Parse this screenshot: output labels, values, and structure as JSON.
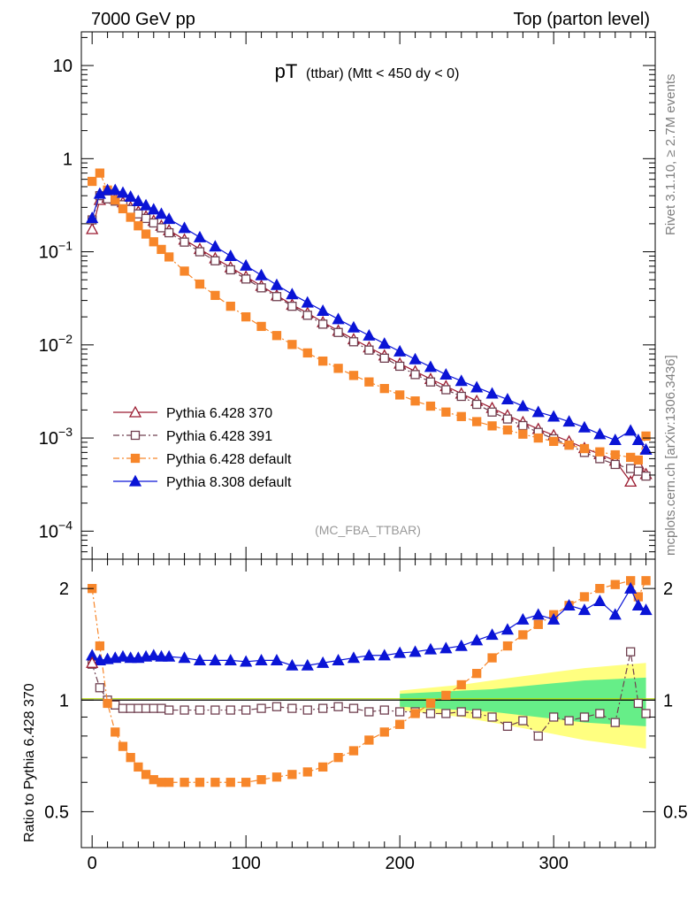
{
  "header": {
    "left": "7000 GeV pp",
    "right": "Top (parton level)"
  },
  "side_labels": {
    "rivet": "Rivet 3.1.10, ≥ 2.7M events",
    "mcplots": "mcplots.cern.ch [arXiv:1306.3436]"
  },
  "chart_data": [
    {
      "type": "line",
      "panel": "main",
      "title_main": "pT",
      "title_sub": "(ttbar) (Mtt < 450 dy < 0)",
      "analysis_label": "(MC_FBA_TTBAR)",
      "yscale": "log",
      "xlim": [
        -7,
        366
      ],
      "ylim": [
        5e-05,
        23
      ],
      "ytick_labels": [
        {
          "value": 0.0001,
          "base": "10",
          "exp": "−4"
        },
        {
          "value": 0.001,
          "base": "10",
          "exp": "−3"
        },
        {
          "value": 0.01,
          "base": "10",
          "exp": "−2"
        },
        {
          "value": 0.1,
          "base": "10",
          "exp": "−1"
        },
        {
          "value": 1,
          "base": "1",
          "exp": ""
        },
        {
          "value": 10,
          "base": "10",
          "exp": ""
        }
      ],
      "legend_position": "lower-left",
      "x": [
        0,
        5,
        10,
        15,
        20,
        25,
        30,
        35,
        40,
        45,
        50,
        60,
        70,
        80,
        90,
        100,
        110,
        120,
        130,
        140,
        150,
        160,
        170,
        180,
        190,
        200,
        210,
        220,
        230,
        240,
        250,
        260,
        270,
        280,
        290,
        300,
        310,
        320,
        330,
        340,
        350,
        355,
        360
      ],
      "series": [
        {
          "name": "Pythia 6.428 370",
          "color": "#9b1b30",
          "marker": "triangle-open",
          "dash": "solid",
          "values": [
            0.175,
            0.36,
            0.38,
            0.37,
            0.34,
            0.3,
            0.27,
            0.24,
            0.215,
            0.19,
            0.17,
            0.135,
            0.107,
            0.085,
            0.068,
            0.054,
            0.043,
            0.034,
            0.027,
            0.022,
            0.0175,
            0.0142,
            0.0115,
            0.0094,
            0.0077,
            0.0063,
            0.0052,
            0.0043,
            0.0036,
            0.003,
            0.0025,
            0.0021,
            0.00175,
            0.00148,
            0.00125,
            0.00107,
            0.00092,
            0.00078,
            0.00067,
            0.00057,
            0.00034,
            0.00052,
            0.00041
          ]
        },
        {
          "name": "Pythia 6.428 391",
          "color": "#704050",
          "marker": "square-open",
          "dash": "dashdot",
          "values": [
            0.22,
            0.4,
            0.37,
            0.35,
            0.32,
            0.285,
            0.255,
            0.228,
            0.204,
            0.181,
            0.16,
            0.127,
            0.1,
            0.08,
            0.064,
            0.051,
            0.041,
            0.033,
            0.026,
            0.0208,
            0.0167,
            0.0136,
            0.0108,
            0.0088,
            0.0072,
            0.0059,
            0.0048,
            0.004,
            0.0033,
            0.0028,
            0.0023,
            0.0019,
            0.0016,
            0.00136,
            0.00115,
            0.00098,
            0.00084,
            0.0007,
            0.0006,
            0.00052,
            0.00047,
            0.00044,
            0.00039
          ]
        },
        {
          "name": "Pythia 6.428 default",
          "color": "#f7862a",
          "marker": "square-filled",
          "dash": "dashdot",
          "values": [
            0.57,
            0.7,
            0.46,
            0.36,
            0.29,
            0.235,
            0.19,
            0.155,
            0.128,
            0.106,
            0.088,
            0.062,
            0.045,
            0.034,
            0.026,
            0.02,
            0.0158,
            0.0126,
            0.0101,
            0.0082,
            0.0067,
            0.0056,
            0.0047,
            0.004,
            0.0034,
            0.0029,
            0.0025,
            0.0022,
            0.0019,
            0.0017,
            0.0015,
            0.00135,
            0.00122,
            0.0011,
            0.001,
            0.00092,
            0.00084,
            0.00077,
            0.00071,
            0.00066,
            0.00062,
            0.00058,
            0.00105
          ]
        },
        {
          "name": "Pythia 8.308 default",
          "color": "#0a14d6",
          "marker": "triangle-filled",
          "dash": "solid",
          "values": [
            0.23,
            0.42,
            0.46,
            0.46,
            0.43,
            0.39,
            0.35,
            0.315,
            0.285,
            0.255,
            0.225,
            0.18,
            0.143,
            0.114,
            0.09,
            0.071,
            0.056,
            0.044,
            0.035,
            0.0285,
            0.0232,
            0.0189,
            0.0154,
            0.0126,
            0.0103,
            0.0085,
            0.007,
            0.0058,
            0.0048,
            0.0041,
            0.0035,
            0.003,
            0.0026,
            0.0022,
            0.0019,
            0.0017,
            0.0015,
            0.0013,
            0.0011,
            0.00095,
            0.0012,
            0.00095,
            0.00075
          ]
        }
      ]
    },
    {
      "type": "line",
      "panel": "ratio",
      "ylabel": "Ratio to Pythia 6.428 370",
      "yscale": "log",
      "ylim": [
        0.4,
        2.4
      ],
      "xlim": [
        -7,
        366
      ],
      "ytick_labels": [
        {
          "value": 0.5,
          "label": "0.5"
        },
        {
          "value": 1,
          "label": "1"
        },
        {
          "value": 2,
          "label": "2"
        }
      ],
      "xtick_labels": [
        {
          "value": 0,
          "label": "0"
        },
        {
          "value": 100,
          "label": "100"
        },
        {
          "value": 200,
          "label": "200"
        },
        {
          "value": 300,
          "label": "300"
        }
      ],
      "x": [
        0,
        5,
        10,
        15,
        20,
        25,
        30,
        35,
        40,
        45,
        50,
        60,
        70,
        80,
        90,
        100,
        110,
        120,
        130,
        140,
        150,
        160,
        170,
        180,
        190,
        200,
        210,
        220,
        230,
        240,
        250,
        260,
        270,
        280,
        290,
        300,
        310,
        320,
        330,
        340,
        350,
        355,
        360
      ],
      "band_x": [
        200,
        220,
        240,
        260,
        280,
        300,
        320,
        340,
        360
      ],
      "band_green": [
        0.04,
        0.05,
        0.06,
        0.07,
        0.09,
        0.11,
        0.13,
        0.14,
        0.15
      ],
      "band_yellow": [
        0.06,
        0.08,
        0.1,
        0.13,
        0.16,
        0.19,
        0.22,
        0.24,
        0.26
      ],
      "series": [
        {
          "name": "Pythia 6.428 391",
          "color": "#704050",
          "marker": "square-open",
          "dash": "dashdot",
          "values": [
            1.25,
            1.08,
            1.0,
            0.97,
            0.95,
            0.95,
            0.95,
            0.95,
            0.95,
            0.95,
            0.94,
            0.94,
            0.94,
            0.94,
            0.94,
            0.94,
            0.95,
            0.96,
            0.95,
            0.94,
            0.95,
            0.96,
            0.95,
            0.93,
            0.94,
            0.93,
            0.93,
            0.92,
            0.92,
            0.93,
            0.92,
            0.9,
            0.85,
            0.88,
            0.8,
            0.9,
            0.88,
            0.9,
            0.92,
            0.87,
            1.35,
            0.98,
            0.92
          ]
        },
        {
          "name": "Pythia 6.428 default",
          "color": "#f7862a",
          "marker": "square-filled",
          "dash": "dashdot",
          "values": [
            2.0,
            1.4,
            0.98,
            0.82,
            0.75,
            0.7,
            0.66,
            0.63,
            0.61,
            0.6,
            0.6,
            0.6,
            0.6,
            0.6,
            0.6,
            0.6,
            0.61,
            0.62,
            0.63,
            0.64,
            0.66,
            0.7,
            0.73,
            0.78,
            0.82,
            0.86,
            0.92,
            0.98,
            1.03,
            1.1,
            1.18,
            1.3,
            1.4,
            1.5,
            1.6,
            1.7,
            1.8,
            1.9,
            2.0,
            2.05,
            2.1,
            1.9,
            2.1
          ]
        },
        {
          "name": "Pythia 8.308 default",
          "color": "#0a14d6",
          "marker": "triangle-filled",
          "dash": "solid",
          "values": [
            1.32,
            1.28,
            1.29,
            1.3,
            1.31,
            1.3,
            1.3,
            1.31,
            1.32,
            1.31,
            1.31,
            1.3,
            1.28,
            1.28,
            1.28,
            1.27,
            1.28,
            1.28,
            1.24,
            1.24,
            1.26,
            1.28,
            1.3,
            1.32,
            1.32,
            1.34,
            1.35,
            1.37,
            1.38,
            1.4,
            1.45,
            1.5,
            1.55,
            1.65,
            1.7,
            1.65,
            1.8,
            1.75,
            1.85,
            1.7,
            2.0,
            1.8,
            1.75
          ]
        }
      ]
    }
  ]
}
